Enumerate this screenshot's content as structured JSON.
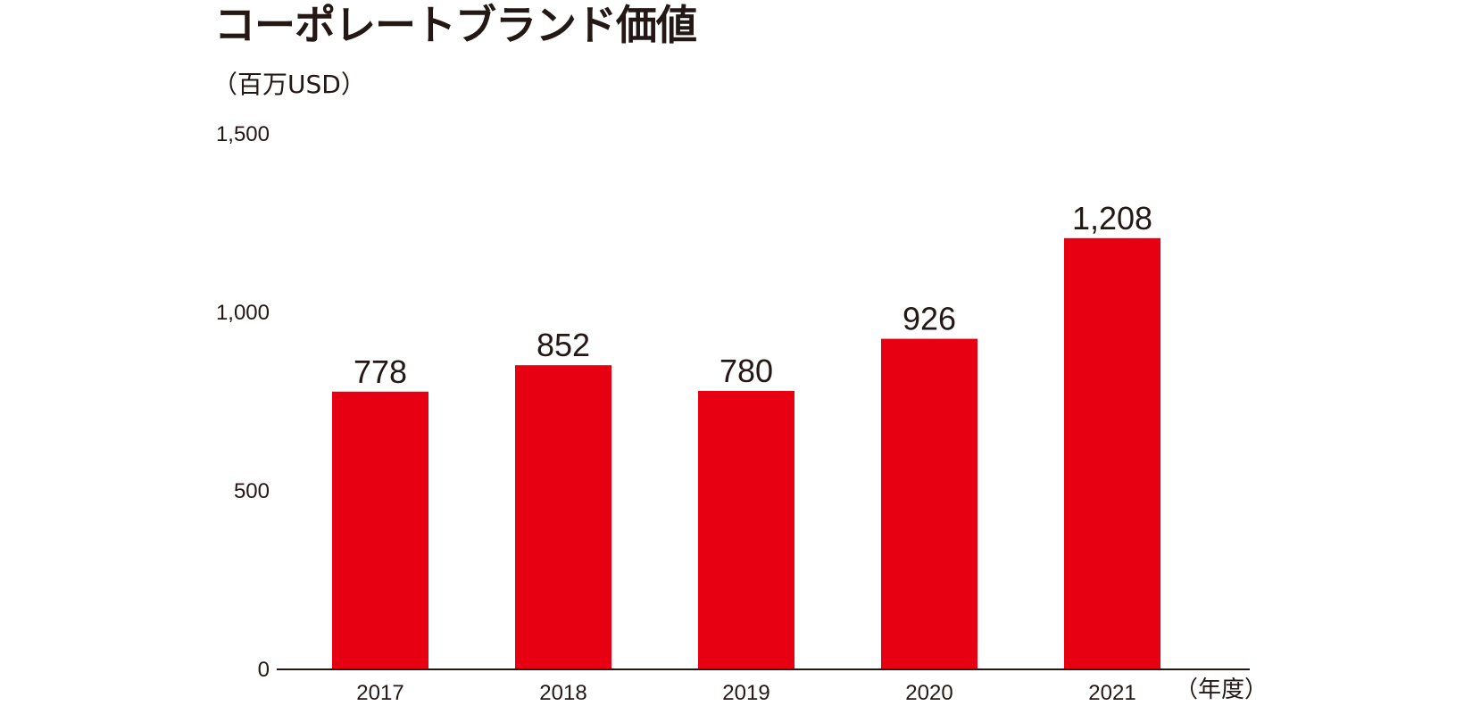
{
  "chart_data": {
    "type": "bar",
    "title": "コーポレートブランド価値",
    "ylabel": "（百万USD）",
    "xlabel": "（年度）",
    "categories": [
      "2017",
      "2018",
      "2019",
      "2020",
      "2021"
    ],
    "values": [
      778,
      852,
      780,
      926,
      1208
    ],
    "data_labels": [
      "778",
      "852",
      "780",
      "926",
      "1,208"
    ],
    "ylim": [
      0,
      1500
    ],
    "yticks": [
      0,
      500,
      1000,
      1500
    ],
    "ytick_labels": [
      "0",
      "500",
      "1,000",
      "1,500"
    ],
    "grid": false,
    "bar_color": "#e60012"
  }
}
